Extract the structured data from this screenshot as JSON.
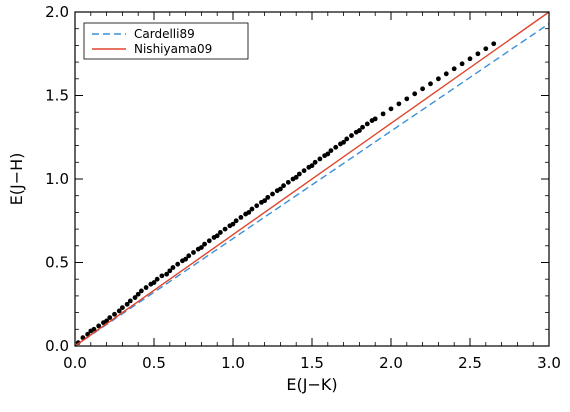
{
  "chart_data": {
    "type": "scatter",
    "title": "",
    "xlabel": "E(J−K)",
    "ylabel": "E(J−H)",
    "xlim": [
      0.0,
      3.0
    ],
    "ylim": [
      0.0,
      2.0
    ],
    "x_ticks": [
      "0.0",
      "0.5",
      "1.0",
      "1.5",
      "2.0",
      "2.5",
      "3.0"
    ],
    "y_ticks": [
      "0.0",
      "0.5",
      "1.0",
      "1.5",
      "2.0"
    ],
    "legend_position": "top-left",
    "grid": false,
    "series": [
      {
        "name": "Cardelli89",
        "type": "line",
        "style": "dashed",
        "color": "#3b8fd9",
        "x": [
          0.0,
          3.0
        ],
        "y": [
          0.0,
          1.93
        ]
      },
      {
        "name": "Nishiyama09",
        "type": "line",
        "style": "solid",
        "color": "#e0452b",
        "x": [
          0.0,
          3.0
        ],
        "y": [
          0.0,
          2.0
        ]
      },
      {
        "type": "scatter",
        "color": "#000000",
        "x": [
          0.02,
          0.05,
          0.08,
          0.1,
          0.12,
          0.15,
          0.18,
          0.2,
          0.22,
          0.25,
          0.28,
          0.3,
          0.33,
          0.35,
          0.38,
          0.4,
          0.42,
          0.45,
          0.48,
          0.5,
          0.52,
          0.55,
          0.58,
          0.6,
          0.62,
          0.65,
          0.68,
          0.7,
          0.72,
          0.75,
          0.78,
          0.8,
          0.82,
          0.85,
          0.88,
          0.9,
          0.92,
          0.95,
          0.98,
          1.0,
          1.02,
          1.05,
          1.08,
          1.1,
          1.12,
          1.15,
          1.18,
          1.2,
          1.22,
          1.25,
          1.28,
          1.3,
          1.32,
          1.35,
          1.38,
          1.4,
          1.42,
          1.45,
          1.48,
          1.5,
          1.52,
          1.55,
          1.58,
          1.6,
          1.62,
          1.65,
          1.68,
          1.7,
          1.72,
          1.75,
          1.78,
          1.8,
          1.82,
          1.85,
          1.88,
          1.9,
          1.95,
          2.0,
          2.05,
          2.1,
          2.15,
          2.2,
          2.25,
          2.3,
          2.35,
          2.4,
          2.45,
          2.5,
          2.55,
          2.6,
          2.65
        ],
        "y": [
          0.02,
          0.05,
          0.07,
          0.09,
          0.1,
          0.12,
          0.14,
          0.15,
          0.17,
          0.19,
          0.21,
          0.23,
          0.25,
          0.27,
          0.29,
          0.31,
          0.33,
          0.35,
          0.37,
          0.38,
          0.4,
          0.42,
          0.43,
          0.45,
          0.47,
          0.49,
          0.51,
          0.52,
          0.54,
          0.56,
          0.58,
          0.59,
          0.61,
          0.63,
          0.65,
          0.66,
          0.68,
          0.7,
          0.72,
          0.73,
          0.75,
          0.77,
          0.79,
          0.8,
          0.82,
          0.84,
          0.86,
          0.87,
          0.89,
          0.91,
          0.93,
          0.94,
          0.96,
          0.98,
          1.0,
          1.01,
          1.03,
          1.05,
          1.07,
          1.08,
          1.1,
          1.12,
          1.14,
          1.15,
          1.17,
          1.19,
          1.21,
          1.22,
          1.24,
          1.26,
          1.28,
          1.29,
          1.31,
          1.33,
          1.35,
          1.36,
          1.39,
          1.42,
          1.45,
          1.48,
          1.51,
          1.54,
          1.57,
          1.6,
          1.63,
          1.66,
          1.69,
          1.72,
          1.75,
          1.78,
          1.81
        ]
      }
    ]
  }
}
